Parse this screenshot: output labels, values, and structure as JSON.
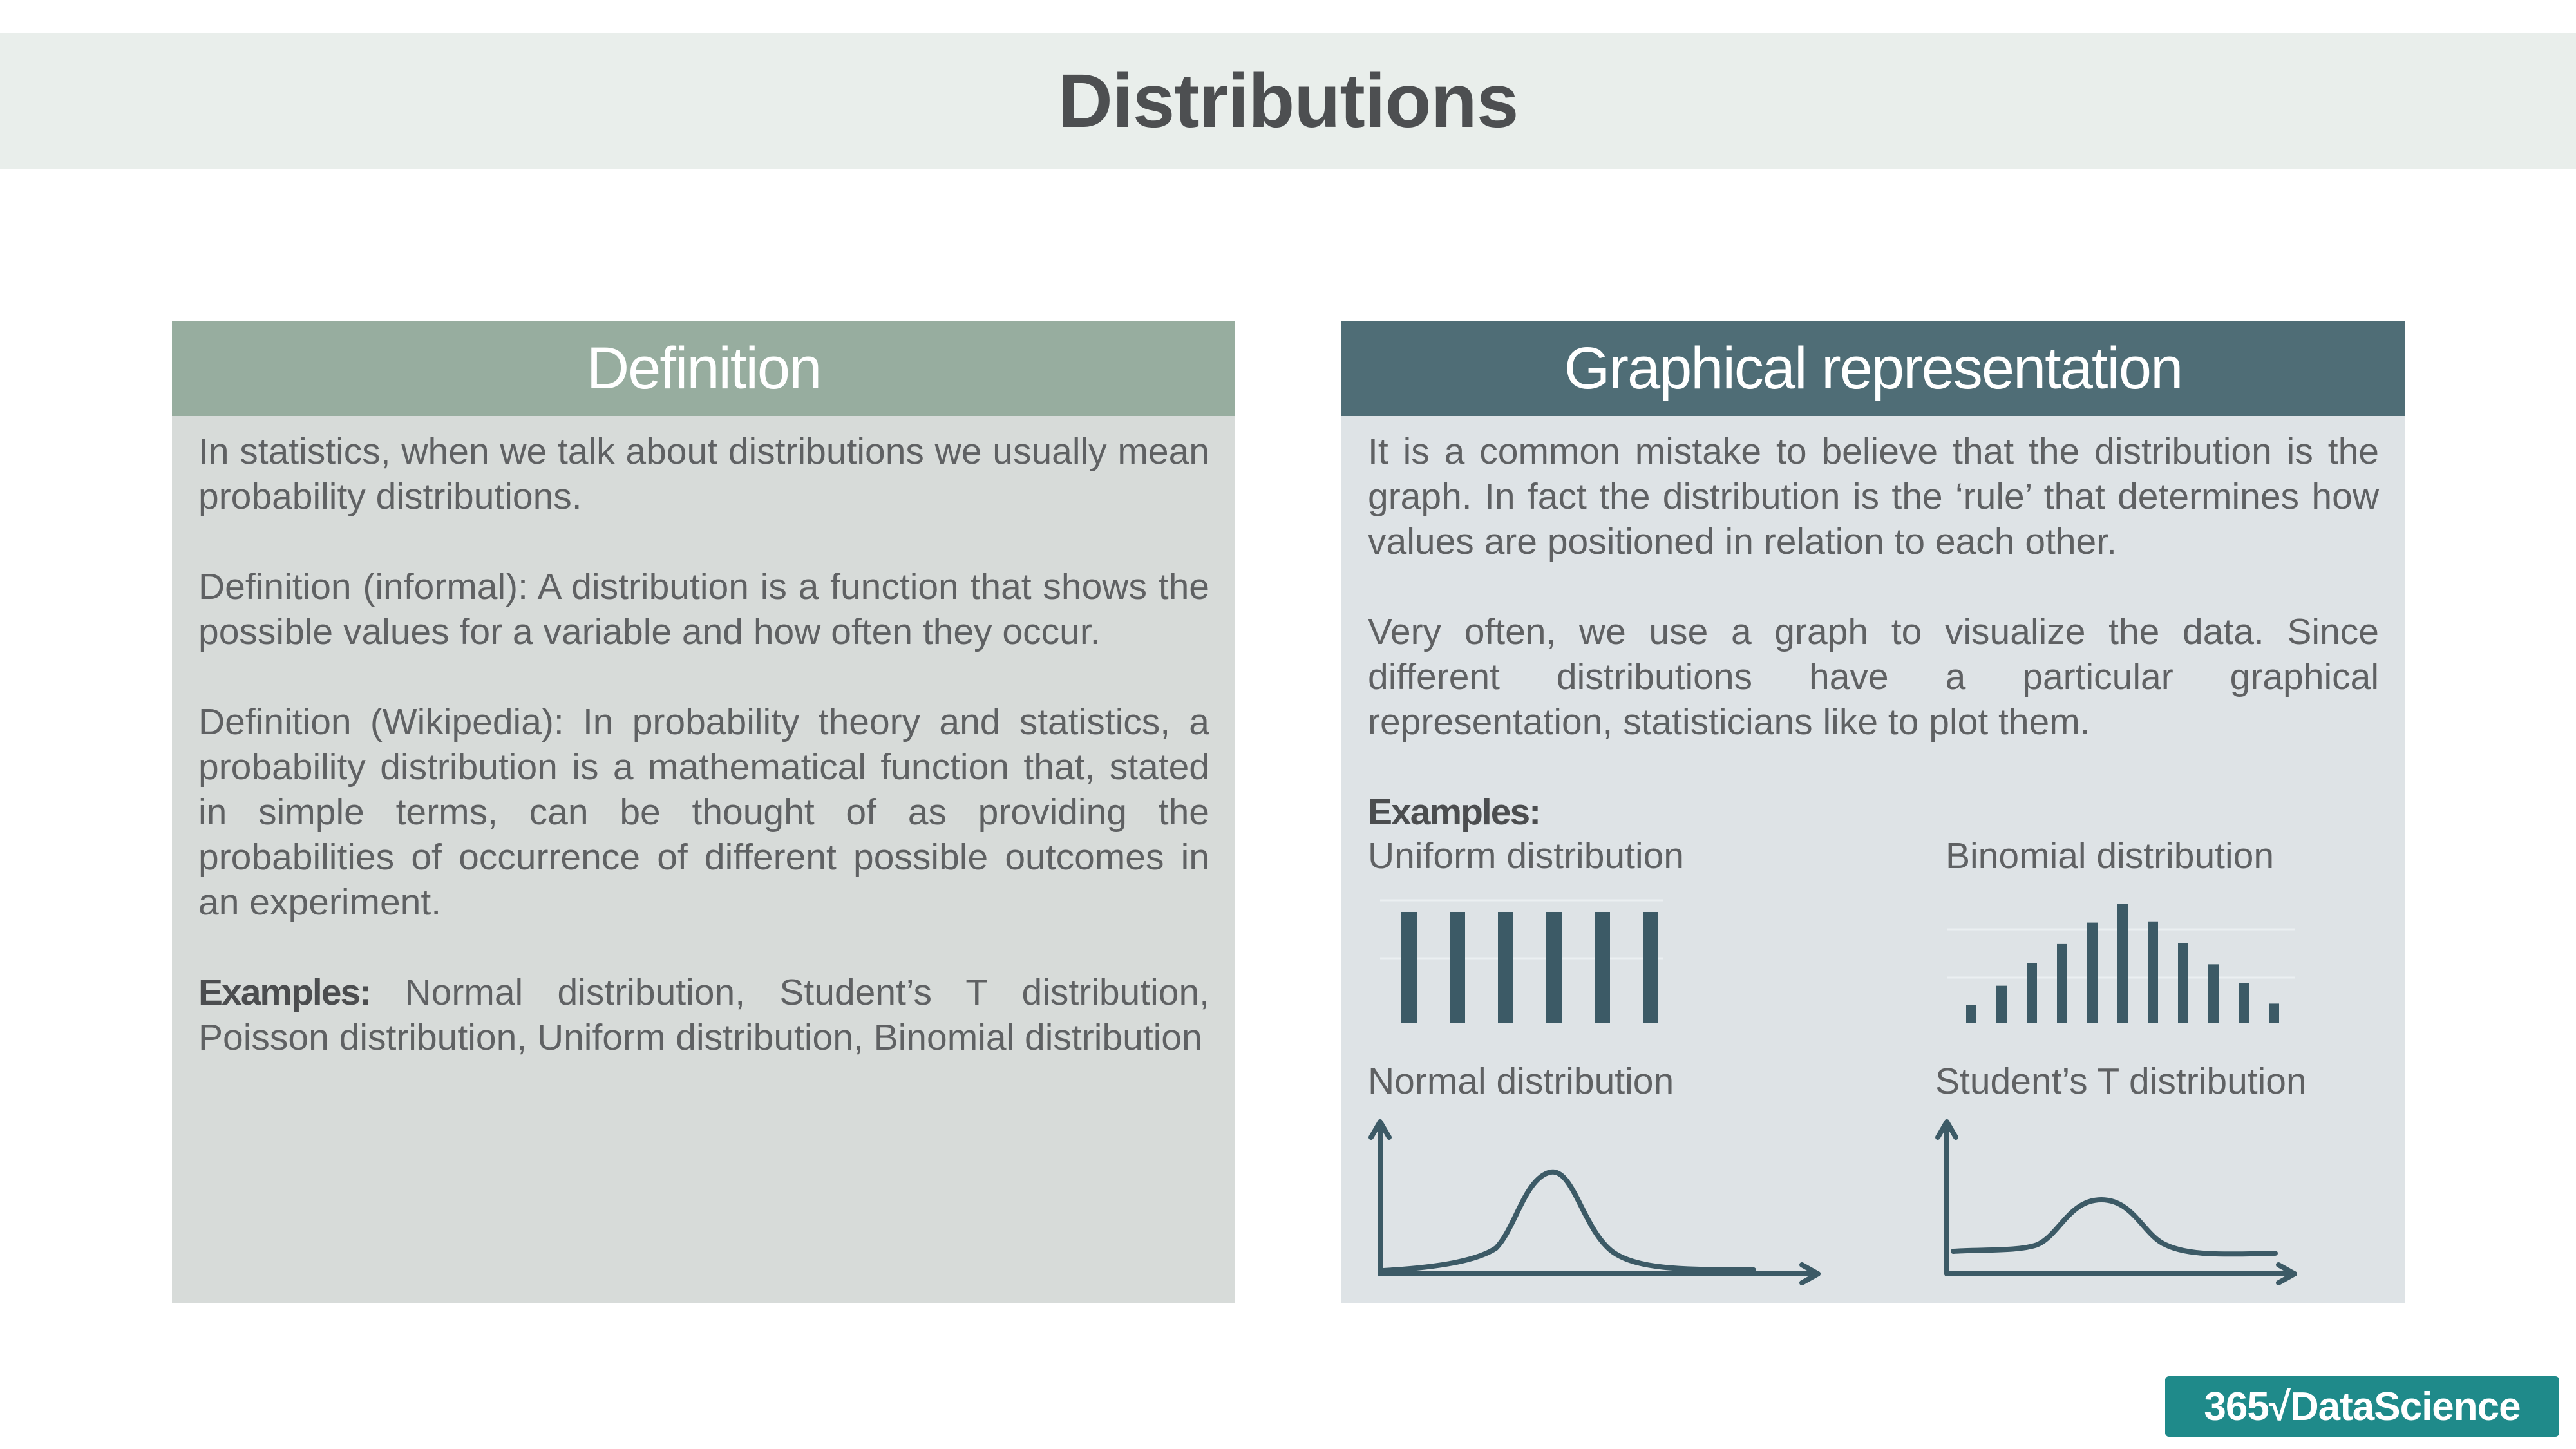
{
  "title": "Distributions",
  "left_panel": {
    "heading": "Definition",
    "para1": "In statistics, when we talk about distributions we usually mean probability distributions.",
    "para2": "Definition (informal): A distribution is a function that shows the possible values for a variable and how often they occur.",
    "para3": "Definition (Wikipedia): In probability theory and statistics, a probability distribution is a mathematical function that, stated in simple terms, can be thought of as providing the probabilities of occurrence of different possible outcomes in an experiment.",
    "examples_label": "Examples:",
    "examples_text": " Normal distribution, Student’s T distribution, Poisson distribution, Uniform distribution, Binomial distribution"
  },
  "right_panel": {
    "heading": "Graphical representation",
    "para1": "It is a common mistake to believe that the distribution is the graph. In fact the distribution is the ‘rule’ that determines how values are positioned in relation to each other.",
    "para2": "Very often, we use a graph to visualize the data. Since different distributions have a particular graphical representation, statisticians like to plot them.",
    "examples_label": "Examples:",
    "graphs": {
      "uniform": {
        "label": "Uniform distribution",
        "values": [
          1,
          1,
          1,
          1,
          1,
          1
        ]
      },
      "binomial": {
        "label": "Binomial distribution",
        "values": [
          0.15,
          0.31,
          0.5,
          0.66,
          0.84,
          1.0,
          0.85,
          0.67,
          0.49,
          0.33,
          0.16
        ]
      },
      "normal": {
        "label": "Normal distribution"
      },
      "student_t": {
        "label": "Student’s T distribution"
      }
    }
  },
  "logo": {
    "text": "365√DataScience"
  },
  "colors": {
    "title_bar": "#e9eeeb",
    "definition_header": "#97ad9f",
    "graphical_header": "#4f6d76",
    "bar_color": "#3c5a66",
    "logo_bg": "#1f8a8a"
  }
}
